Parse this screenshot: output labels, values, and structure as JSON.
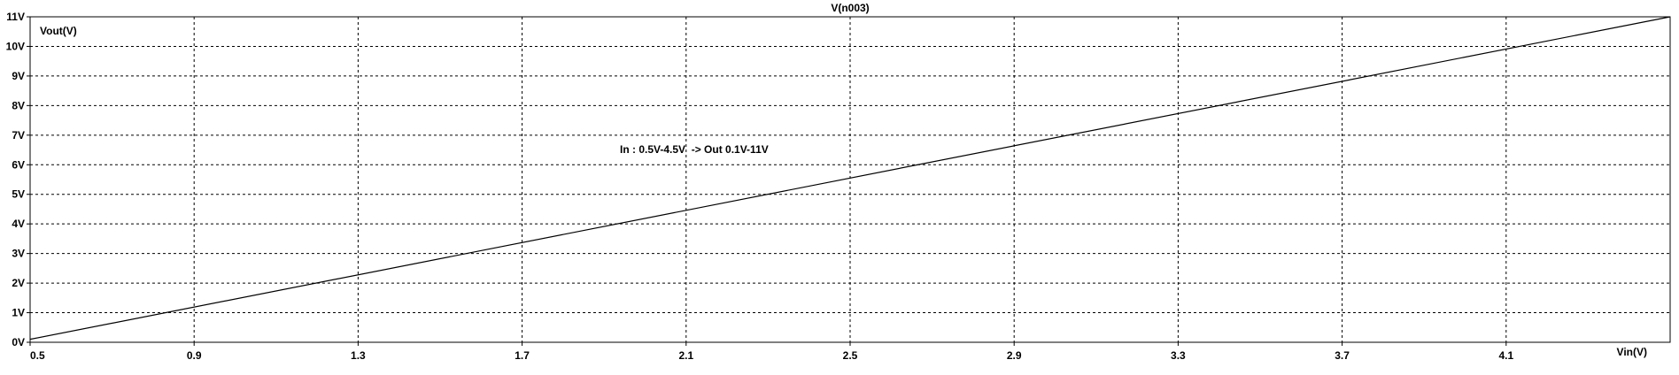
{
  "chart_data": {
    "type": "line",
    "title": "V(n003)",
    "xlabel": "Vin(V)",
    "ylabel": "Vout(V)",
    "x_ticks": [
      "0.5",
      "0.9",
      "1.3",
      "1.7",
      "2.1",
      "2.5",
      "2.9",
      "3.3",
      "3.7",
      "4.1"
    ],
    "y_ticks": [
      "0V",
      "1V",
      "2V",
      "3V",
      "4V",
      "5V",
      "6V",
      "7V",
      "8V",
      "9V",
      "10V",
      "11V"
    ],
    "xlim": [
      0.5,
      4.5
    ],
    "ylim": [
      0,
      11
    ],
    "grid": true,
    "grid_style": "dashed",
    "annotation": "In : 0.5V-4.5V  -> Out 0.1V-11V",
    "series": [
      {
        "color": "#000000",
        "x": [
          0.5,
          4.5
        ],
        "y": [
          0.1,
          11.0
        ]
      }
    ]
  }
}
